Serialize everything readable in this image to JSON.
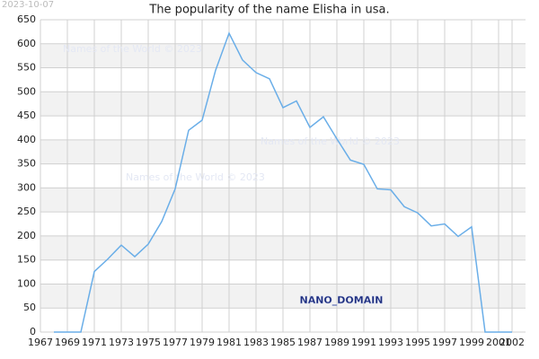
{
  "chart_data": {
    "type": "line",
    "date_stamp": "2023-10-07",
    "title": "The popularity of the name Elisha in usa.",
    "watermarks": [
      "Names of the World © 2023",
      "Names of the World © 2023",
      "Names of the World © 2023"
    ],
    "domain_label": "NANO_DOMAIN",
    "x": [
      1968,
      1969,
      1970,
      1971,
      1972,
      1973,
      1974,
      1975,
      1976,
      1977,
      1978,
      1979,
      1980,
      1981,
      1982,
      1983,
      1984,
      1985,
      1986,
      1987,
      1988,
      1989,
      1990,
      1991,
      1992,
      1993,
      1994,
      1995,
      1996,
      1997,
      1998,
      1999,
      2000,
      2001,
      2002
    ],
    "series": [
      {
        "color": "#6aaee8",
        "values": [
          0,
          0,
          0,
          126,
          152,
          181,
          157,
          183,
          230,
          298,
          420,
          441,
          545,
          622,
          566,
          540,
          527,
          467,
          481,
          426,
          448,
          402,
          358,
          349,
          298,
          296,
          261,
          248,
          221,
          225,
          199,
          219,
          0,
          0,
          0
        ]
      }
    ],
    "xlim": [
      1967,
      2003
    ],
    "xticks": [
      1967,
      1969,
      1971,
      1973,
      1975,
      1977,
      1979,
      1981,
      1983,
      1985,
      1987,
      1989,
      1991,
      1993,
      1995,
      1997,
      1999,
      2001,
      2002
    ],
    "ylim": [
      0,
      650
    ],
    "yticks": [
      0,
      50,
      100,
      150,
      200,
      250,
      300,
      350,
      400,
      450,
      500,
      550,
      600,
      650
    ],
    "grid": true,
    "banded": true
  }
}
